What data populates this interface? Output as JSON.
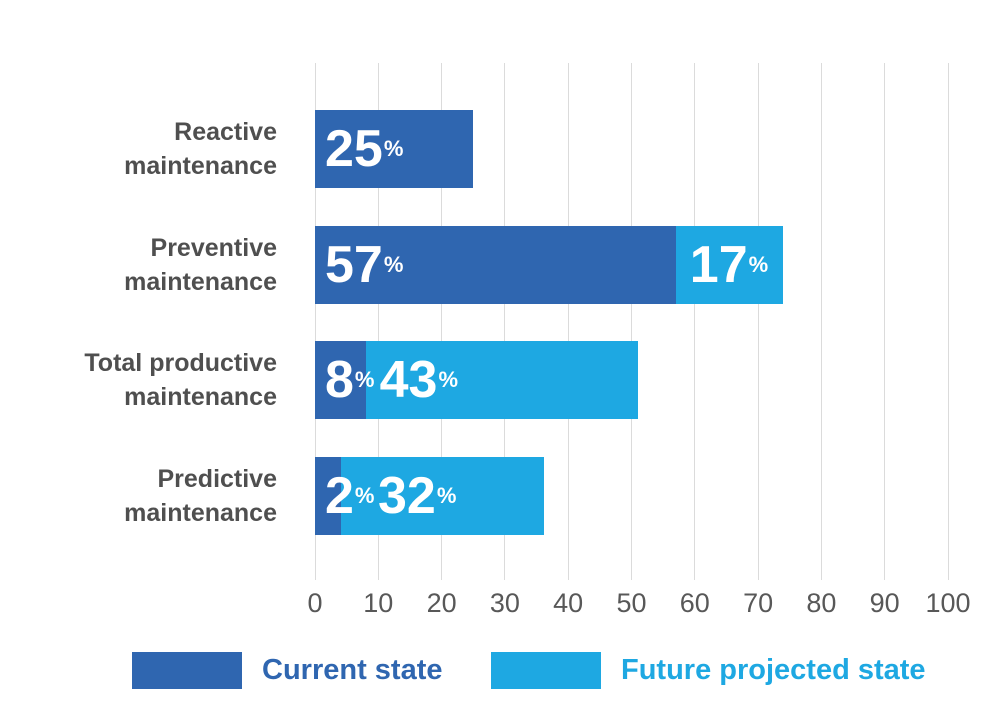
{
  "chart_data": {
    "type": "bar",
    "orientation": "horizontal",
    "stacked": true,
    "title": "",
    "xlabel": "",
    "ylabel": "",
    "categories": [
      "Reactive maintenance",
      "Preventive maintenance",
      "Total productive maintenance",
      "Predictive maintenance"
    ],
    "category_lines": [
      [
        "Reactive",
        "maintenance"
      ],
      [
        "Preventive",
        "maintenance"
      ],
      [
        "Total productive",
        "maintenance"
      ],
      [
        "Predictive",
        "maintenance"
      ]
    ],
    "series": [
      {
        "name": "Current state",
        "color": "#2f66b0",
        "values": [
          25,
          57,
          8,
          2
        ]
      },
      {
        "name": "Future projected state",
        "color": "#1ea8e2",
        "values": [
          0,
          17,
          43,
          32
        ]
      }
    ],
    "value_suffix": "%",
    "xlim": [
      0,
      100
    ],
    "x_ticks": [
      0,
      10,
      20,
      30,
      40,
      50,
      60,
      70,
      80,
      90,
      100
    ],
    "grid": "vertical",
    "gridline_color": "#dbdbdb",
    "legend_position": "bottom"
  },
  "colors": {
    "current_state": "#2f66b0",
    "future_projected_state": "#1ea8e2",
    "category_text": "#4f4f4f",
    "tick_text": "#585858",
    "bar_value_text": "#ffffff",
    "background": "#ffffff"
  }
}
